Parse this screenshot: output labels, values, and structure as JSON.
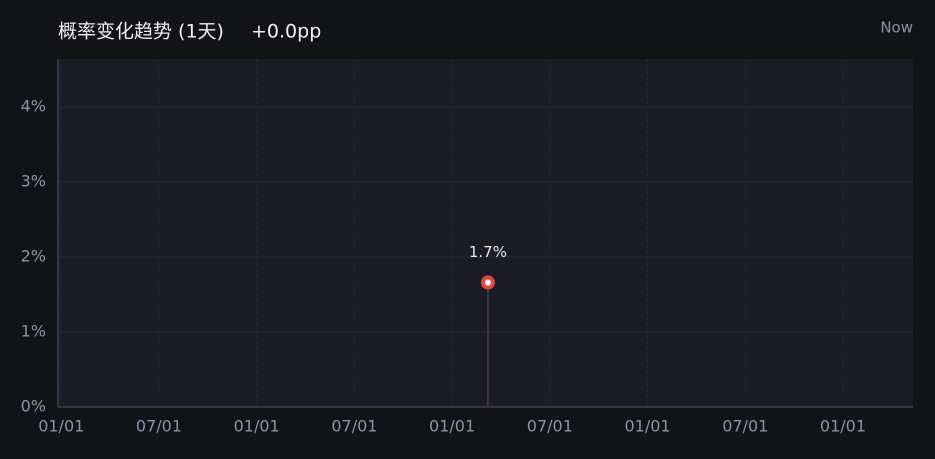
{
  "chart_data": {
    "type": "line",
    "title": "概率变化趋势 (1天)",
    "subtitle": "+0.0pp",
    "annotation": "Now",
    "x": [
      26.2
    ],
    "values": [
      1.66
    ],
    "value_labels": [
      "1.7%"
    ],
    "color": "#e5483c",
    "xlim": [
      -0.2,
      52.3
    ],
    "xticks": [
      {
        "value": 0,
        "label": "01/01"
      },
      {
        "value": 6,
        "label": "07/01"
      },
      {
        "value": 12,
        "label": "01/01"
      },
      {
        "value": 18,
        "label": "07/01"
      },
      {
        "value": 24,
        "label": "01/01"
      },
      {
        "value": 30,
        "label": "07/01"
      },
      {
        "value": 36,
        "label": "01/01"
      },
      {
        "value": 42,
        "label": "07/01"
      },
      {
        "value": 48,
        "label": "01/01"
      }
    ],
    "ylim": [
      0,
      4.64
    ],
    "yticks": [
      {
        "value": 0,
        "label": "0%"
      },
      {
        "value": 1,
        "label": "1%"
      },
      {
        "value": 2,
        "label": "2%"
      },
      {
        "value": 3,
        "label": "3%"
      },
      {
        "value": 4,
        "label": "4%"
      }
    ],
    "grid": true
  }
}
